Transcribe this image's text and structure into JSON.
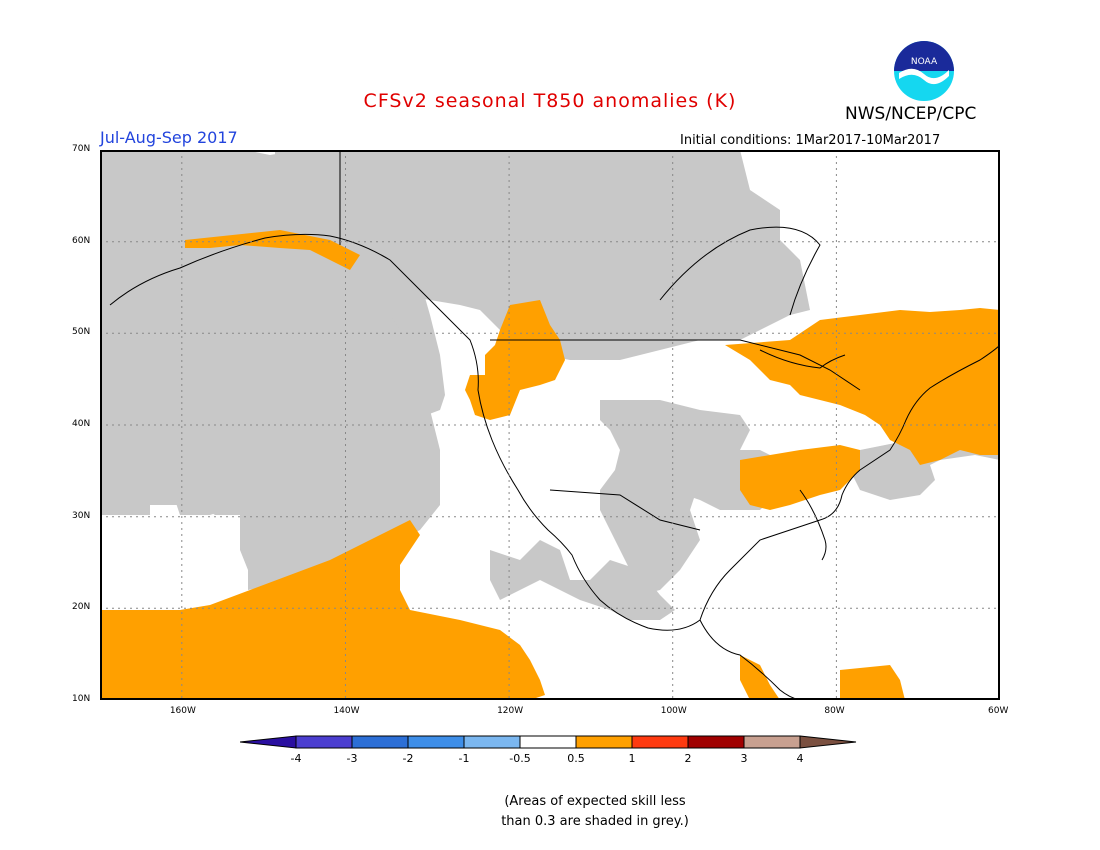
{
  "header": {
    "title": "CFSv2 seasonal T850 anomalies (K)",
    "agency": "NWS/NCEP/CPC",
    "period": "Jul-Aug-Sep 2017",
    "initial_conditions": "Initial conditions: 1Mar2017-10Mar2017",
    "logo_text": "NOAA"
  },
  "map": {
    "extent": {
      "lon_min": -170,
      "lon_max": -60,
      "lat_min": 10,
      "lat_max": 70
    },
    "lat_labels": [
      "70N",
      "60N",
      "50N",
      "40N",
      "30N",
      "20N",
      "10N"
    ],
    "lon_labels": [
      "160W",
      "140W",
      "120W",
      "100W",
      "80W",
      "60W"
    ],
    "colors": {
      "skill_grey": "#c8c8c8",
      "anomaly_orange": "#ffa000",
      "coast": "#000000"
    }
  },
  "colorbar": {
    "labels": [
      "-4",
      "-3",
      "-2",
      "-1",
      "-0.5",
      "0.5",
      "1",
      "2",
      "3",
      "4"
    ],
    "colors": [
      "#2a0fa0",
      "#4b3ecf",
      "#2c6fd6",
      "#3e8ee8",
      "#7bb7f0",
      "#ffffff",
      "#ffa000",
      "#ff3a10",
      "#a00000",
      "#c8a090",
      "#7b5040"
    ]
  },
  "note": {
    "line1": "(Areas of expected skill less",
    "line2": "than 0.3 are shaded in grey.)"
  }
}
